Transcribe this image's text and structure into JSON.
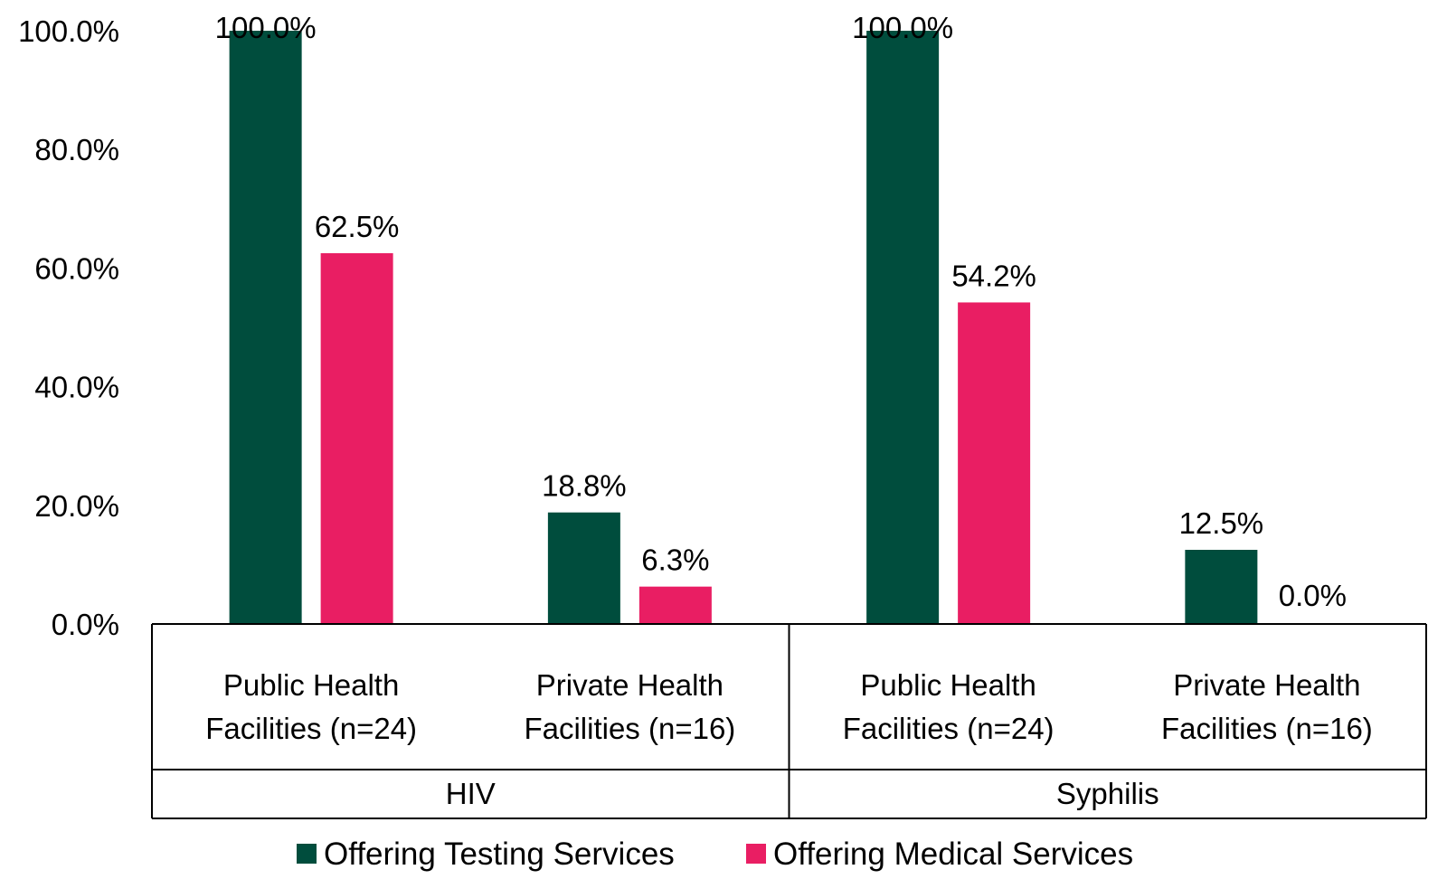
{
  "chart_data": {
    "type": "bar",
    "title": "",
    "xlabel": "",
    "ylabel": "",
    "ylim": [
      0,
      100
    ],
    "yticks": [
      "0.0%",
      "20.0%",
      "40.0%",
      "60.0%",
      "80.0%",
      "100.0%"
    ],
    "ytick_values": [
      0,
      20,
      40,
      60,
      80,
      100
    ],
    "grid": false,
    "legend_position": "bottom",
    "groups": [
      {
        "label": "HIV",
        "categories": [
          "Public Health Facilities (n=24)",
          "Private Health Facilities (n=16)"
        ]
      },
      {
        "label": "Syphilis",
        "categories": [
          "Public Health Facilities (n=24)",
          "Private Health Facilities (n=16)"
        ]
      }
    ],
    "category_lines": [
      [
        "Public Health",
        "Facilities (n=24)"
      ],
      [
        "Private Health",
        "Facilities (n=16)"
      ],
      [
        "Public Health",
        "Facilities (n=24)"
      ],
      [
        "Private Health",
        "Facilities (n=16)"
      ]
    ],
    "categories": [
      "HIV - Public Health Facilities (n=24)",
      "HIV - Private Health Facilities (n=16)",
      "Syphilis - Public Health Facilities (n=24)",
      "Syphilis - Private Health Facilities (n=16)"
    ],
    "series": [
      {
        "name": "Offering Testing Services",
        "color": "#004d3d",
        "values": [
          100.0,
          18.8,
          100.0,
          12.5
        ],
        "labels": [
          "100.0%",
          "18.8%",
          "100.0%",
          "12.5%"
        ]
      },
      {
        "name": "Offering Medical Services",
        "color": "#e91e63",
        "values": [
          62.5,
          6.3,
          54.2,
          0.0
        ],
        "labels": [
          "62.5%",
          "6.3%",
          "54.2%",
          "0.0%"
        ]
      }
    ]
  }
}
